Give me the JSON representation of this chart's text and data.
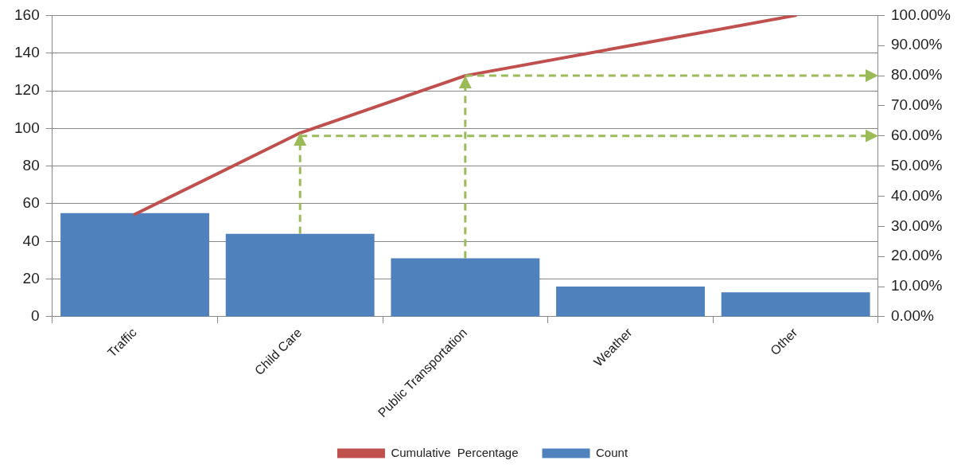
{
  "chart_data": {
    "type": "bar",
    "categories": [
      "Traffic",
      "Child Care",
      "Public Transportation",
      "Weather",
      "Other"
    ],
    "series": [
      {
        "name": "Count",
        "color": "#4f81bd",
        "values": [
          55,
          44,
          31,
          16,
          13
        ]
      },
      {
        "name": "Cumulative  Percentage",
        "type": "line",
        "axis": "y2",
        "color": "#c0504d",
        "values": [
          34,
          61,
          80,
          90,
          100
        ]
      }
    ],
    "ylim": [
      0,
      160
    ],
    "yticks": [
      0,
      20,
      40,
      60,
      80,
      100,
      120,
      140,
      160
    ],
    "y2lim": [
      0,
      100
    ],
    "y2ticks": [
      {
        "value": 0,
        "label": "0.00%"
      },
      {
        "value": 10,
        "label": "10.00%"
      },
      {
        "value": 20,
        "label": "20.00%"
      },
      {
        "value": 30,
        "label": "30.00%"
      },
      {
        "value": 40,
        "label": "40.00%"
      },
      {
        "value": 50,
        "label": "50.00%"
      },
      {
        "value": 60,
        "label": "60.00%"
      },
      {
        "value": 70,
        "label": "70.00%"
      },
      {
        "value": 80,
        "label": "80.00%"
      },
      {
        "value": 90,
        "label": "90.00%"
      },
      {
        "value": 100,
        "label": "100.00%"
      }
    ],
    "ref_lines": [
      {
        "axis": "y2",
        "value": 60,
        "color": "#9bbb59",
        "line_style": "dashed"
      },
      {
        "axis": "y2",
        "value": 80,
        "color": "#9bbb59",
        "line_style": "dashed"
      }
    ],
    "grid": "y",
    "legend": "bottom",
    "marker": "none"
  }
}
